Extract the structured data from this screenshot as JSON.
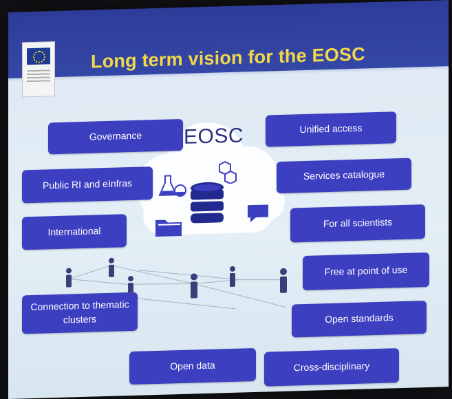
{
  "slide": {
    "title": "Long term vision for the EOSC",
    "center_label": "EOSC",
    "logo_name": "european-commission-logo",
    "left_boxes": [
      "Governance",
      "Public RI and eInfras",
      "International",
      "Connection to thematic clusters"
    ],
    "right_boxes": [
      "Unified access",
      "Services catalogue",
      "For all scientists",
      "Free at point of use",
      "Open standards"
    ],
    "bottom_boxes": [
      "Open data",
      "Cross-disciplinary"
    ],
    "colors": {
      "title_bar": "#3446a6",
      "title_text": "#f1d84a",
      "box_fill": "#3b3fc0",
      "box_text": "#ffffff",
      "cloud_fill": "#ffffff"
    },
    "icons": [
      "database-icon",
      "flask-icon",
      "folder-icon",
      "molecule-icon",
      "chat-icon",
      "person-icon"
    ]
  }
}
